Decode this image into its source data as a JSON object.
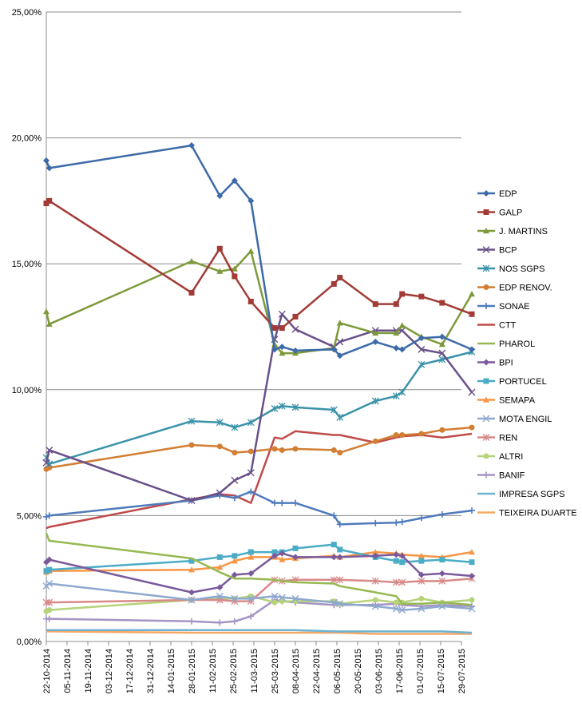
{
  "chart_data": {
    "type": "line",
    "title": "",
    "xlabel": "",
    "ylabel": "",
    "ylim": [
      0,
      25
    ],
    "grid": "horizontal",
    "legend_position": "right",
    "y_ticks": [
      "0,00%",
      "5,00%",
      "10,00%",
      "15,00%",
      "20,00%",
      "25,00%"
    ],
    "x_ticks": [
      "22-10-2014",
      "05-11-2014",
      "19-11-2014",
      "03-12-2014",
      "17-12-2014",
      "31-12-2014",
      "14-01-2015",
      "28-01-2015",
      "11-02-2015",
      "25-02-2015",
      "11-03-2015",
      "25-03-2015",
      "08-04-2015",
      "22-04-2015",
      "06-05-2015",
      "20-05-2015",
      "03-06-2015",
      "17-06-2015",
      "01-07-2015",
      "15-07-2015",
      "29-07-2015"
    ],
    "x": [
      "2014-10-22",
      "2014-10-24",
      "2015-01-28",
      "2015-02-16",
      "2015-02-26",
      "2015-03-09",
      "2015-03-25",
      "2015-03-30",
      "2015-04-08",
      "2015-05-04",
      "2015-05-08",
      "2015-06-01",
      "2015-06-15",
      "2015-06-19",
      "2015-07-02",
      "2015-07-16",
      "2015-08-05"
    ],
    "series": [
      {
        "name": "EDP",
        "color": "#3d6aa8",
        "marker": "diamond",
        "values": [
          19.1,
          18.8,
          19.7,
          17.7,
          18.3,
          17.5,
          11.6,
          11.7,
          11.55,
          11.6,
          11.35,
          11.9,
          11.65,
          11.6,
          12.05,
          12.1,
          11.6
        ]
      },
      {
        "name": "GALP",
        "color": "#a23b36",
        "marker": "square",
        "values": [
          17.4,
          17.5,
          13.85,
          15.6,
          14.5,
          13.5,
          12.45,
          12.45,
          12.9,
          14.2,
          14.45,
          13.4,
          13.4,
          13.8,
          13.7,
          13.45,
          13.0
        ]
      },
      {
        "name": "J. MARTINS",
        "color": "#7d9a3a",
        "marker": "triangle",
        "values": [
          13.1,
          12.6,
          15.1,
          14.7,
          14.8,
          15.5,
          11.8,
          11.45,
          11.45,
          11.65,
          12.65,
          12.25,
          12.25,
          12.55,
          12.1,
          11.8,
          13.8
        ]
      },
      {
        "name": "BCP",
        "color": "#69508a",
        "marker": "x",
        "values": [
          7.1,
          7.6,
          5.6,
          5.9,
          6.4,
          6.7,
          12.0,
          13.0,
          12.4,
          11.7,
          11.9,
          12.35,
          12.35,
          12.35,
          11.6,
          11.45,
          9.9
        ]
      },
      {
        "name": "NOS SGPS",
        "color": "#3a93a8",
        "marker": "asterisk",
        "values": [
          7.3,
          7.05,
          8.75,
          8.7,
          8.5,
          8.7,
          9.25,
          9.35,
          9.3,
          9.2,
          8.9,
          9.55,
          9.75,
          9.9,
          11.0,
          11.2,
          11.5
        ]
      },
      {
        "name": "EDP RENOV.",
        "color": "#d27e33",
        "marker": "circle",
        "values": [
          6.85,
          6.9,
          7.8,
          7.75,
          7.5,
          7.55,
          7.65,
          7.6,
          7.65,
          7.6,
          7.5,
          7.95,
          8.2,
          8.2,
          8.25,
          8.4,
          8.5
        ]
      },
      {
        "name": "SONAE",
        "color": "#4f7bbd",
        "marker": "plus",
        "values": [
          4.95,
          5.0,
          5.6,
          5.8,
          5.7,
          5.95,
          5.5,
          5.5,
          5.5,
          5.0,
          4.65,
          4.7,
          4.72,
          4.75,
          4.9,
          5.05,
          5.2
        ]
      },
      {
        "name": "CTT",
        "color": "#bf4b49",
        "marker": "none",
        "values": [
          4.5,
          4.55,
          5.65,
          5.85,
          5.8,
          5.5,
          8.1,
          8.05,
          8.35,
          8.2,
          8.2,
          7.9,
          8.1,
          8.15,
          8.2,
          8.1,
          8.25
        ]
      },
      {
        "name": "PHAROL",
        "color": "#96b851",
        "marker": "none",
        "values": [
          4.3,
          4.0,
          3.3,
          2.75,
          2.5,
          2.5,
          2.45,
          2.4,
          2.35,
          2.3,
          2.2,
          1.95,
          1.8,
          1.5,
          1.5,
          1.55,
          1.45
        ]
      },
      {
        "name": "BPI",
        "color": "#7b5a9c",
        "marker": "diamond",
        "values": [
          3.15,
          3.25,
          1.95,
          2.15,
          2.65,
          2.7,
          3.4,
          3.5,
          3.35,
          3.35,
          3.35,
          3.4,
          3.45,
          3.4,
          2.65,
          2.7,
          2.6
        ]
      },
      {
        "name": "PORTUCEL",
        "color": "#4bacc6",
        "marker": "square",
        "values": [
          2.8,
          2.85,
          3.2,
          3.35,
          3.4,
          3.55,
          3.55,
          3.55,
          3.7,
          3.85,
          3.65,
          3.35,
          3.2,
          3.15,
          3.2,
          3.25,
          3.15
        ]
      },
      {
        "name": "SEMAPA",
        "color": "#f79646",
        "marker": "triangle",
        "values": [
          2.75,
          2.8,
          2.85,
          2.95,
          3.2,
          3.35,
          3.35,
          3.25,
          3.3,
          3.4,
          3.35,
          3.55,
          3.5,
          3.45,
          3.4,
          3.35,
          3.55
        ]
      },
      {
        "name": "MOTA ENGIL",
        "color": "#8ea9cf",
        "marker": "x",
        "values": [
          2.2,
          2.3,
          1.65,
          1.8,
          1.7,
          1.7,
          1.8,
          1.75,
          1.7,
          1.55,
          1.5,
          1.4,
          1.3,
          1.25,
          1.3,
          1.4,
          1.3
        ]
      },
      {
        "name": "REN",
        "color": "#d88a88",
        "marker": "asterisk",
        "values": [
          1.55,
          1.55,
          1.65,
          1.65,
          1.6,
          1.6,
          2.45,
          2.4,
          2.45,
          2.45,
          2.45,
          2.4,
          2.35,
          2.35,
          2.4,
          2.4,
          2.5
        ]
      },
      {
        "name": "ALTRI",
        "color": "#b6d37a",
        "marker": "circle",
        "values": [
          1.2,
          1.25,
          1.65,
          1.7,
          1.7,
          1.8,
          1.55,
          1.6,
          1.6,
          1.6,
          1.5,
          1.65,
          1.55,
          1.55,
          1.7,
          1.55,
          1.65
        ]
      },
      {
        "name": "BANIF",
        "color": "#a594c4",
        "marker": "plus",
        "values": [
          0.9,
          0.9,
          0.8,
          0.75,
          0.8,
          1.0,
          1.65,
          1.6,
          1.55,
          1.45,
          1.45,
          1.45,
          1.5,
          1.45,
          1.4,
          1.45,
          1.4
        ]
      },
      {
        "name": "IMPRESA SGPS",
        "color": "#6fb2d0",
        "marker": "none",
        "values": [
          0.45,
          0.45,
          0.45,
          0.45,
          0.45,
          0.45,
          0.45,
          0.45,
          0.45,
          0.4,
          0.4,
          0.4,
          0.4,
          0.4,
          0.4,
          0.4,
          0.35
        ]
      },
      {
        "name": "TEIXEIRA DUARTE",
        "color": "#f4a866",
        "marker": "none",
        "values": [
          0.4,
          0.4,
          0.35,
          0.35,
          0.35,
          0.35,
          0.35,
          0.35,
          0.35,
          0.35,
          0.35,
          0.3,
          0.3,
          0.3,
          0.3,
          0.3,
          0.3
        ]
      }
    ]
  }
}
